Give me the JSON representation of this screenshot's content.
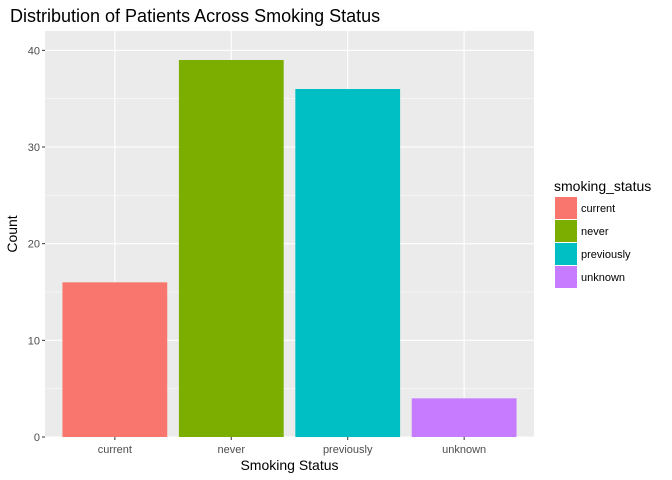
{
  "chart_data": {
    "type": "bar",
    "title": "Distribution of Patients Across Smoking Status",
    "xlabel": "Smoking Status",
    "ylabel": "Count",
    "categories": [
      "current",
      "never",
      "previously",
      "unknown"
    ],
    "values": [
      16,
      39,
      36,
      4
    ],
    "ylim": [
      0,
      42
    ],
    "yticks": [
      0,
      10,
      20,
      30,
      40
    ],
    "grid": true,
    "legend": {
      "title": "smoking_status",
      "placement": "right",
      "entries": [
        "current",
        "never",
        "previously",
        "unknown"
      ]
    },
    "colors": [
      "#F8766D",
      "#7CAE00",
      "#00BFC4",
      "#C77CFF"
    ],
    "panel_background": "#EBEBEB",
    "grid_color": "#FFFFFF"
  }
}
